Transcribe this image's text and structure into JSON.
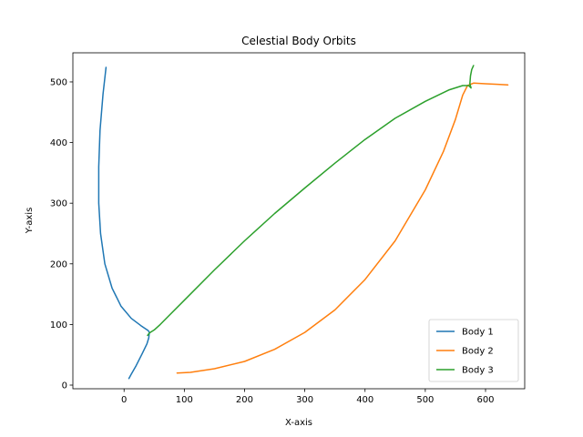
{
  "chart_data": {
    "type": "line",
    "title": "Celestial Body Orbits",
    "xlabel": "X-axis",
    "ylabel": "Y-axis",
    "xlim": [
      -85,
      665
    ],
    "ylim": [
      -6,
      548
    ],
    "xticks": [
      0,
      100,
      200,
      300,
      400,
      500,
      600
    ],
    "yticks": [
      0,
      100,
      200,
      300,
      400,
      500
    ],
    "grid": false,
    "legend_position": "lower-right",
    "series": [
      {
        "name": "Body 1",
        "color": "#1f77b4",
        "points": [
          [
            -30,
            524
          ],
          [
            -35,
            480
          ],
          [
            -40,
            420
          ],
          [
            -42,
            360
          ],
          [
            -42,
            300
          ],
          [
            -39,
            250
          ],
          [
            -32,
            200
          ],
          [
            -20,
            160
          ],
          [
            -5,
            130
          ],
          [
            12,
            110
          ],
          [
            28,
            98
          ],
          [
            40,
            90
          ],
          [
            42,
            87
          ],
          [
            41,
            78
          ],
          [
            38,
            68
          ],
          [
            30,
            52
          ],
          [
            20,
            32
          ],
          [
            12,
            18
          ],
          [
            8,
            11
          ]
        ]
      },
      {
        "name": "Body 2",
        "color": "#ff7f0e",
        "points": [
          [
            88,
            20
          ],
          [
            110,
            21
          ],
          [
            150,
            27
          ],
          [
            200,
            39
          ],
          [
            250,
            59
          ],
          [
            300,
            87
          ],
          [
            350,
            124
          ],
          [
            400,
            174
          ],
          [
            450,
            238
          ],
          [
            500,
            322
          ],
          [
            530,
            385
          ],
          [
            550,
            438
          ],
          [
            562,
            478
          ],
          [
            570,
            494
          ],
          [
            580,
            498
          ],
          [
            600,
            497
          ],
          [
            620,
            496
          ],
          [
            637,
            495
          ]
        ]
      },
      {
        "name": "Body 3",
        "color": "#2ca02c",
        "points": [
          [
            39,
            82
          ],
          [
            42,
            86
          ],
          [
            50,
            91
          ],
          [
            60,
            100
          ],
          [
            75,
            115
          ],
          [
            100,
            140
          ],
          [
            150,
            190
          ],
          [
            200,
            238
          ],
          [
            250,
            283
          ],
          [
            300,
            325
          ],
          [
            350,
            366
          ],
          [
            400,
            405
          ],
          [
            450,
            440
          ],
          [
            500,
            468
          ],
          [
            540,
            487
          ],
          [
            562,
            494
          ],
          [
            572,
            494
          ],
          [
            576,
            490
          ],
          [
            574,
            497
          ],
          [
            575,
            510
          ],
          [
            577,
            520
          ],
          [
            580,
            527
          ]
        ]
      }
    ]
  }
}
